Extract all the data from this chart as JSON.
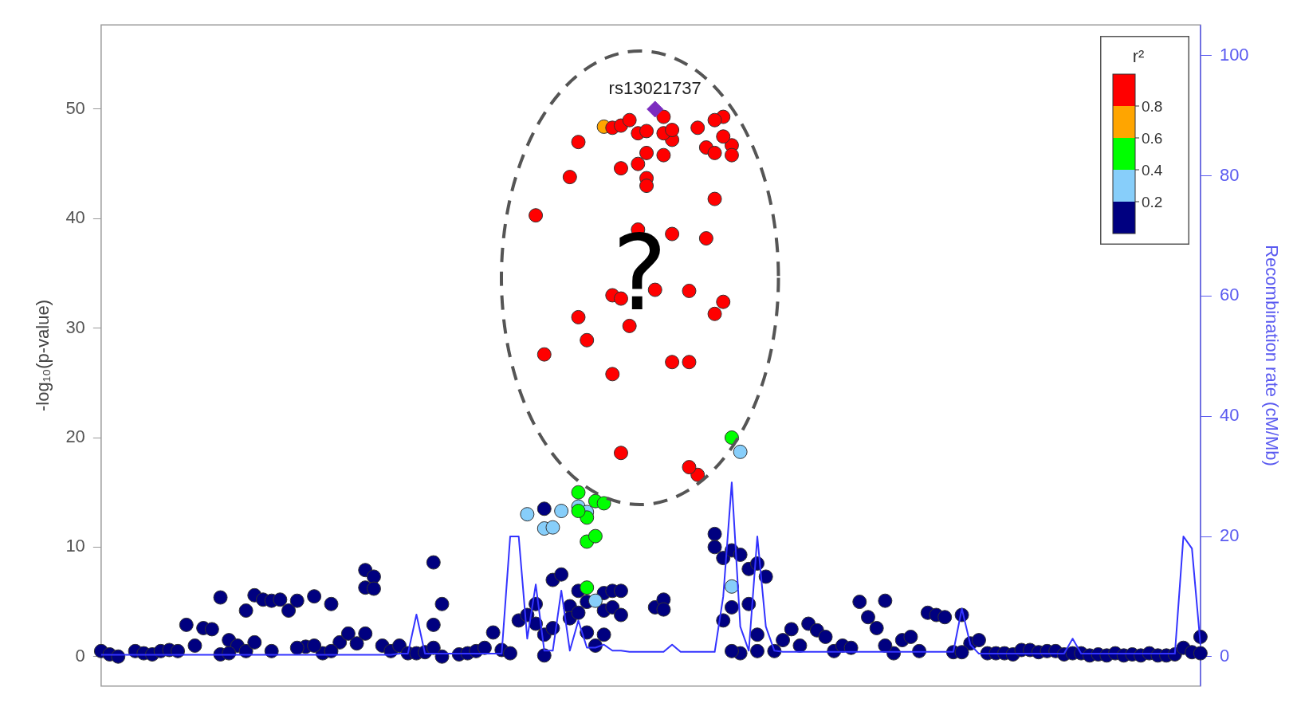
{
  "chart_data": {
    "type": "scatter",
    "ylabel": "-log₁₀(p-value)",
    "y2label": "Recombination rate (cM/Mb)",
    "clabel": "r²",
    "marker": "circle",
    "tick_labels": "y",
    "ylim": [
      -2.7,
      57.7
    ],
    "yticks": [
      0,
      10,
      20,
      30,
      40,
      50
    ],
    "y2lim": [
      -4.9,
      105.1
    ],
    "y2ticks": [
      0,
      20,
      40,
      60,
      80,
      100
    ],
    "annotations": [
      "rs13021737",
      "?",
      "0.2",
      "0.4",
      "0.6",
      "0.8"
    ],
    "categories": [
      null,
      null,
      null,
      null,
      null,
      null,
      null,
      null,
      null,
      null,
      null,
      null,
      null,
      null,
      null,
      null,
      null,
      null,
      null,
      null,
      null,
      null,
      null,
      null,
      null,
      null,
      null,
      null,
      null,
      null,
      null,
      null,
      null,
      null,
      null,
      null,
      null,
      null,
      null,
      null,
      null,
      null,
      null,
      null,
      null,
      null,
      null,
      null,
      null,
      null,
      null,
      null,
      null,
      null,
      null,
      null,
      null,
      null,
      null,
      null,
      null,
      null,
      null,
      null,
      null,
      null,
      null,
      null,
      null,
      null,
      null,
      null,
      null,
      null,
      null,
      null,
      null,
      null,
      null,
      null,
      null,
      null,
      null,
      null,
      null,
      null,
      null,
      null,
      null,
      null,
      null,
      null,
      null,
      null,
      null,
      null,
      null,
      null,
      null,
      null,
      null,
      null,
      null,
      null,
      null,
      null,
      null,
      null,
      null,
      null,
      null,
      null,
      null,
      null,
      null,
      null,
      null,
      null,
      null,
      null,
      null,
      null,
      null,
      null,
      null,
      null,
      null,
      null,
      null,
      null
    ],
    "series": [
      {
        "type": "line",
        "axis": "y2",
        "color": "#3333ff",
        "marker": "none",
        "values": [
          0.3,
          0.3,
          0.3,
          0.3,
          0.3,
          0.3,
          0.3,
          0.3,
          0.3,
          0.3,
          0.3,
          0.3,
          0.3,
          0.3,
          0.3,
          0.3,
          0.3,
          0.3,
          0.3,
          0.3,
          0.3,
          0.3,
          0.3,
          0.3,
          0.3,
          0.3,
          0.3,
          0.3,
          0.3,
          0.3,
          0.3,
          0.3,
          0.3,
          0.3,
          0.3,
          0.5,
          0.5,
          7,
          0.5,
          0.5,
          0.5,
          0.5,
          0.5,
          0.5,
          0.5,
          0.5,
          0.5,
          0.5,
          20,
          20,
          3,
          12,
          1,
          1,
          11,
          1,
          6,
          1.5,
          1.5,
          2,
          1,
          1,
          0.8,
          0.8,
          0.8,
          0.8,
          0.8,
          2,
          0.8,
          0.8,
          0.8,
          0.8,
          0.8,
          10,
          29,
          5,
          1,
          20,
          5,
          1,
          0.8,
          0.8,
          0.8,
          0.8,
          0.8,
          0.8,
          0.8,
          0.8,
          0.8,
          0.8,
          0.8,
          0.8,
          0.8,
          0.8,
          0.8,
          0.8,
          0.8,
          0.8,
          0.8,
          0.8,
          0.8,
          8,
          2,
          0.5,
          0.5,
          0.5,
          0.5,
          0.5,
          0.5,
          0.5,
          0.5,
          0.5,
          0.5,
          0.5,
          3,
          0.5,
          0.5,
          0.5,
          0.5,
          0.5,
          0.5,
          0.5,
          0.5,
          0.5,
          0.5,
          0.5,
          0.5,
          20,
          18,
          2
        ]
      },
      {
        "color": "#000080",
        "values": [
          0.5,
          0.2,
          0,
          null,
          0.5,
          0.3,
          0.2,
          0.5,
          0.6,
          0.5,
          2.9,
          1.0,
          2.6,
          2.5,
          5.4,
          1.5,
          1.0,
          4.2,
          5.6,
          5.2,
          5.1,
          5.2,
          4.2,
          5.1,
          0.9,
          5.5,
          0.3,
          4.8,
          1.3,
          2.1,
          1.2,
          7.9,
          7.3,
          1.0,
          0.5,
          1.0,
          0.3,
          0.3,
          0.4,
          8.6,
          4.8,
          null,
          0.2,
          0.3,
          0.5,
          0.8,
          2.2,
          0.6,
          0.3,
          3.3,
          3.8,
          3.0,
          2.0,
          7.0,
          7.5,
          4.6,
          6.0,
          5.0,
          1.0,
          5.8,
          6.0,
          6.0,
          null,
          null,
          null,
          4.5,
          5.2,
          null,
          null,
          null,
          null,
          null,
          11.2,
          9.0,
          9.7,
          9.3,
          8.0,
          8.5,
          7.3,
          0.5,
          1.5,
          2.5,
          1.0,
          3.0,
          2.4,
          1.8,
          0.5,
          1.0,
          0.8,
          5.0,
          3.6,
          2.6,
          5.1,
          0.3,
          1.5,
          1.8,
          0.5,
          4.0,
          3.8,
          3.6,
          0.4,
          3.8,
          1.2,
          1.5,
          0.3,
          0.3,
          0.3,
          0.2,
          0.6,
          0.6,
          0.4,
          0.5,
          0.5,
          0.2,
          0.3,
          0.3,
          0.1,
          0.2,
          0.1,
          0.3,
          0.1,
          0.2,
          0.1,
          0.3,
          0.1,
          0.1,
          0.2,
          0.8,
          0.4,
          1.8
        ]
      },
      {
        "color": "#000080",
        "values": [
          null,
          null,
          null,
          null,
          null,
          null,
          null,
          null,
          null,
          null,
          null,
          null,
          null,
          null,
          0.2,
          0.3,
          null,
          0.5,
          1.3,
          null,
          0.5,
          null,
          null,
          0.8,
          null,
          1.0,
          null,
          0.5,
          null,
          null,
          null,
          6.3,
          6.2,
          null,
          null,
          null,
          null,
          null,
          null,
          2.9,
          0,
          null,
          null,
          null,
          null,
          null,
          null,
          null,
          null,
          null,
          null,
          4.8,
          0.1,
          2.6,
          null,
          3.5,
          4.0,
          2.2,
          null,
          4.2,
          4.5,
          3.8,
          null,
          null,
          null,
          null,
          4.3,
          null,
          null,
          null,
          null,
          null,
          10.0,
          3.3,
          4.5,
          0.3,
          4.8,
          0.5,
          null,
          null,
          null,
          null,
          null,
          null,
          null,
          null,
          null,
          null,
          null,
          null,
          null,
          null,
          1.0,
          null,
          null,
          null,
          null,
          null,
          null,
          null,
          null,
          0.4,
          null,
          null,
          null,
          null,
          null,
          null,
          null,
          null,
          null,
          null,
          null,
          null,
          null,
          null,
          null,
          null,
          null,
          null,
          null,
          null,
          null,
          null,
          null,
          null,
          null,
          null,
          null,
          0.3
        ]
      },
      {
        "color": "#000080",
        "values": [
          null,
          null,
          null,
          null,
          null,
          null,
          null,
          null,
          null,
          null,
          null,
          null,
          null,
          null,
          null,
          null,
          null,
          null,
          null,
          null,
          null,
          null,
          null,
          null,
          null,
          null,
          null,
          null,
          null,
          null,
          null,
          2.1,
          null,
          null,
          null,
          null,
          null,
          null,
          null,
          0.8,
          null,
          null,
          null,
          null,
          null,
          null,
          null,
          null,
          null,
          null,
          null,
          null,
          13.5,
          null,
          null,
          null,
          null,
          null,
          null,
          2.0,
          null,
          null,
          null,
          null,
          null,
          null,
          null,
          null,
          null,
          null,
          null,
          null,
          null,
          null,
          0.5,
          null,
          null,
          2.0,
          null,
          null,
          null,
          null,
          null,
          null,
          null,
          null,
          null,
          null,
          null,
          null,
          null,
          null,
          null,
          null,
          null,
          null,
          null,
          null,
          null,
          null,
          null,
          null,
          null,
          null,
          null,
          null,
          null,
          null,
          null,
          null,
          null,
          null,
          null,
          null,
          null,
          null,
          null,
          null,
          null,
          null,
          null,
          null,
          null,
          null,
          null,
          null,
          null,
          null,
          null,
          null
        ]
      },
      {
        "color": "#87cefa",
        "values": [
          null,
          null,
          null,
          null,
          null,
          null,
          null,
          null,
          null,
          null,
          null,
          null,
          null,
          null,
          null,
          null,
          null,
          null,
          null,
          null,
          null,
          null,
          null,
          null,
          null,
          null,
          null,
          null,
          null,
          null,
          null,
          null,
          null,
          null,
          null,
          null,
          null,
          null,
          null,
          null,
          null,
          null,
          null,
          null,
          null,
          null,
          null,
          null,
          null,
          null,
          13.0,
          null,
          11.7,
          11.8,
          13.3,
          null,
          13.7,
          13.2,
          5.1,
          null,
          null,
          null,
          null,
          null,
          null,
          null,
          null,
          null,
          null,
          null,
          null,
          null,
          null,
          null,
          6.4,
          18.7,
          null,
          null,
          null,
          null,
          null,
          null,
          null,
          null,
          null,
          null,
          null,
          null,
          null,
          null,
          null,
          null,
          null,
          null,
          null,
          null,
          null,
          null,
          null,
          null,
          null,
          null,
          null,
          null,
          null,
          null,
          null,
          null,
          null,
          null,
          null,
          null,
          null,
          null,
          null,
          null,
          null,
          null,
          null,
          null,
          null,
          null,
          null,
          null,
          null,
          null,
          null,
          null,
          null,
          null
        ]
      },
      {
        "color": "#00ff00",
        "values": [
          null,
          null,
          null,
          null,
          null,
          null,
          null,
          null,
          null,
          null,
          null,
          null,
          null,
          null,
          null,
          null,
          null,
          null,
          null,
          null,
          null,
          null,
          null,
          null,
          null,
          null,
          null,
          null,
          null,
          null,
          null,
          null,
          null,
          null,
          null,
          null,
          null,
          null,
          null,
          null,
          null,
          null,
          null,
          null,
          null,
          null,
          null,
          null,
          null,
          null,
          null,
          null,
          null,
          null,
          null,
          null,
          15.0,
          12.7,
          14.2,
          14.0,
          null,
          null,
          null,
          null,
          null,
          null,
          null,
          null,
          null,
          null,
          null,
          null,
          null,
          null,
          20.0,
          null,
          null,
          null,
          null,
          null,
          null,
          null,
          null,
          null,
          null,
          null,
          null,
          null,
          null,
          null,
          null,
          null,
          null,
          null,
          null,
          null,
          null,
          null,
          null,
          null,
          null,
          null,
          null,
          null,
          null,
          null,
          null,
          null,
          null,
          null,
          null,
          null,
          null,
          null,
          null,
          null,
          null,
          null,
          null,
          null,
          null,
          null,
          null,
          null,
          null,
          null,
          null,
          null,
          null,
          null
        ]
      },
      {
        "color": "#00ff00",
        "values": [
          null,
          null,
          null,
          null,
          null,
          null,
          null,
          null,
          null,
          null,
          null,
          null,
          null,
          null,
          null,
          null,
          null,
          null,
          null,
          null,
          null,
          null,
          null,
          null,
          null,
          null,
          null,
          null,
          null,
          null,
          null,
          null,
          null,
          null,
          null,
          null,
          null,
          null,
          null,
          null,
          null,
          null,
          null,
          null,
          null,
          null,
          null,
          null,
          null,
          null,
          null,
          null,
          null,
          null,
          null,
          null,
          13.3,
          10.5,
          11.0,
          null,
          null,
          null,
          null,
          null,
          null,
          null,
          null,
          null,
          null,
          null,
          null,
          null,
          null,
          null,
          null,
          null,
          null,
          null,
          null,
          null,
          null,
          null,
          null,
          null,
          null,
          null,
          null,
          null,
          null,
          null,
          null,
          null,
          null,
          null,
          null,
          null,
          null,
          null,
          null,
          null,
          null,
          null,
          null,
          null,
          null,
          null,
          null,
          null,
          null,
          null,
          null,
          null,
          null,
          null,
          null,
          null,
          null,
          null,
          null,
          null,
          null,
          null,
          null,
          null,
          null,
          null,
          null,
          null,
          null,
          null
        ]
      },
      {
        "color": "#00ff00",
        "values": [
          null,
          null,
          null,
          null,
          null,
          null,
          null,
          null,
          null,
          null,
          null,
          null,
          null,
          null,
          null,
          null,
          null,
          null,
          null,
          null,
          null,
          null,
          null,
          null,
          null,
          null,
          null,
          null,
          null,
          null,
          null,
          null,
          null,
          null,
          null,
          null,
          null,
          null,
          null,
          null,
          null,
          null,
          null,
          null,
          null,
          null,
          null,
          null,
          null,
          null,
          null,
          null,
          null,
          null,
          null,
          null,
          null,
          6.3,
          null,
          null,
          null,
          null,
          null,
          null,
          null,
          null,
          null,
          null,
          null,
          null,
          null,
          null,
          null,
          null,
          null,
          null,
          null,
          null,
          null,
          null,
          null,
          null,
          null,
          null,
          null,
          null,
          null,
          null,
          null,
          null,
          null,
          null,
          null,
          null,
          null,
          null,
          null,
          null,
          null,
          null,
          null,
          null,
          null,
          null,
          null,
          null,
          null,
          null,
          null,
          null,
          null,
          null,
          null,
          null,
          null,
          null,
          null,
          null,
          null,
          null,
          null,
          null,
          null,
          null,
          null,
          null,
          null,
          null,
          null,
          null
        ]
      },
      {
        "color": "#ffa500",
        "values": [
          null,
          null,
          null,
          null,
          null,
          null,
          null,
          null,
          null,
          null,
          null,
          null,
          null,
          null,
          null,
          null,
          null,
          null,
          null,
          null,
          null,
          null,
          null,
          null,
          null,
          null,
          null,
          null,
          null,
          null,
          null,
          null,
          null,
          null,
          null,
          null,
          null,
          null,
          null,
          null,
          null,
          null,
          null,
          null,
          null,
          null,
          null,
          null,
          null,
          null,
          null,
          null,
          null,
          null,
          null,
          null,
          null,
          null,
          null,
          48.4,
          null,
          null,
          null,
          null,
          null,
          null,
          null,
          null,
          null,
          null,
          null,
          null,
          null,
          null,
          null,
          null,
          null,
          null,
          null,
          null,
          null,
          null,
          null,
          null,
          null,
          null,
          null,
          null,
          null,
          null,
          null,
          null,
          null,
          null,
          null,
          null,
          null,
          null,
          null,
          null,
          null,
          null,
          null,
          null,
          null,
          null,
          null,
          null,
          null,
          null,
          null,
          null,
          null,
          null,
          null,
          null,
          null,
          null,
          null,
          null,
          null,
          null,
          null,
          null,
          null,
          null,
          null,
          null,
          null,
          null
        ]
      },
      {
        "color": "#ff0000",
        "values": [
          null,
          null,
          null,
          null,
          null,
          null,
          null,
          null,
          null,
          null,
          null,
          null,
          null,
          null,
          null,
          null,
          null,
          null,
          null,
          null,
          null,
          null,
          null,
          null,
          null,
          null,
          null,
          null,
          null,
          null,
          null,
          null,
          null,
          null,
          null,
          null,
          null,
          null,
          null,
          null,
          null,
          null,
          null,
          null,
          null,
          null,
          null,
          null,
          null,
          null,
          null,
          40.3,
          27.6,
          null,
          null,
          43.8,
          47.0,
          28.9,
          null,
          null,
          48.3,
          48.5,
          49.0,
          47.8,
          46.0,
          33.5,
          49.3,
          47.2,
          null,
          33.4,
          48.3,
          38.2,
          41.8,
          49.3,
          46.7,
          null,
          null,
          null,
          null,
          null,
          null,
          null,
          null,
          null,
          null,
          null,
          null,
          null,
          null,
          null,
          null,
          null,
          null,
          null,
          null,
          null,
          null,
          null,
          null,
          null,
          null,
          null,
          null,
          null,
          null,
          null,
          null,
          null,
          null,
          null,
          null,
          null,
          null,
          null,
          null,
          null,
          null,
          null,
          null,
          null,
          null,
          null,
          null,
          null,
          null,
          null,
          null,
          null,
          null,
          null
        ]
      },
      {
        "color": "#ff0000",
        "values": [
          null,
          null,
          null,
          null,
          null,
          null,
          null,
          null,
          null,
          null,
          null,
          null,
          null,
          null,
          null,
          null,
          null,
          null,
          null,
          null,
          null,
          null,
          null,
          null,
          null,
          null,
          null,
          null,
          null,
          null,
          null,
          null,
          null,
          null,
          null,
          null,
          null,
          null,
          null,
          null,
          null,
          null,
          null,
          null,
          null,
          null,
          null,
          null,
          null,
          null,
          null,
          null,
          null,
          null,
          null,
          null,
          31.0,
          null,
          null,
          null,
          33.0,
          44.6,
          30.2,
          45.0,
          48.0,
          null,
          47.8,
          48.1,
          null,
          26.9,
          16.6,
          46.5,
          49.0,
          47.5,
          45.8,
          null,
          null,
          null,
          null,
          null,
          null,
          null,
          null,
          null,
          null,
          null,
          null,
          null,
          null,
          null,
          null,
          null,
          null,
          null,
          null,
          null,
          null,
          null,
          null,
          null,
          null,
          null,
          null,
          null,
          null,
          null,
          null,
          null,
          null,
          null,
          null,
          null,
          null,
          null,
          null,
          null,
          null,
          null,
          null,
          null,
          null,
          null,
          null,
          null,
          null,
          null,
          null,
          null,
          null,
          null
        ]
      },
      {
        "color": "#ff0000",
        "values": [
          null,
          null,
          null,
          null,
          null,
          null,
          null,
          null,
          null,
          null,
          null,
          null,
          null,
          null,
          null,
          null,
          null,
          null,
          null,
          null,
          null,
          null,
          null,
          null,
          null,
          null,
          null,
          null,
          null,
          null,
          null,
          null,
          null,
          null,
          null,
          null,
          null,
          null,
          null,
          null,
          null,
          null,
          null,
          null,
          null,
          null,
          null,
          null,
          null,
          null,
          null,
          null,
          null,
          null,
          null,
          null,
          null,
          null,
          null,
          null,
          25.8,
          32.7,
          null,
          null,
          43.7,
          null,
          45.8,
          38.6,
          null,
          17.3,
          null,
          null,
          46.0,
          32.4,
          null,
          null,
          null,
          null,
          null,
          null,
          null,
          null,
          null,
          null,
          null,
          null,
          null,
          null,
          null,
          null,
          null,
          null,
          null,
          null,
          null,
          null,
          null,
          null,
          null,
          null,
          null,
          null,
          null,
          null,
          null,
          null,
          null,
          null,
          null,
          null,
          null,
          null,
          null,
          null,
          null,
          null,
          null,
          null,
          null,
          null,
          null,
          null,
          null,
          null,
          null,
          null,
          null,
          null,
          null,
          null
        ]
      },
      {
        "color": "#ff0000",
        "values": [
          null,
          null,
          null,
          null,
          null,
          null,
          null,
          null,
          null,
          null,
          null,
          null,
          null,
          null,
          null,
          null,
          null,
          null,
          null,
          null,
          null,
          null,
          null,
          null,
          null,
          null,
          null,
          null,
          null,
          null,
          null,
          null,
          null,
          null,
          null,
          null,
          null,
          null,
          null,
          null,
          null,
          null,
          null,
          null,
          null,
          null,
          null,
          null,
          null,
          null,
          null,
          null,
          null,
          null,
          null,
          null,
          null,
          null,
          null,
          null,
          null,
          18.6,
          null,
          39.0,
          43.0,
          null,
          null,
          26.9,
          null,
          null,
          null,
          null,
          31.3,
          null,
          null,
          null,
          null,
          null,
          null,
          null,
          null,
          null,
          null,
          null,
          null,
          null,
          null,
          null,
          null,
          null,
          null,
          null,
          null,
          null,
          null,
          null,
          null,
          null,
          null,
          null,
          null,
          null,
          null,
          null,
          null,
          null,
          null,
          null,
          null,
          null,
          null,
          null,
          null,
          null,
          null,
          null,
          null,
          null,
          null,
          null,
          null,
          null,
          null,
          null,
          null,
          null,
          null,
          null,
          null,
          null
        ]
      },
      {
        "color": "#7b2cbf",
        "marker": "diamond",
        "values": [
          null,
          null,
          null,
          null,
          null,
          null,
          null,
          null,
          null,
          null,
          null,
          null,
          null,
          null,
          null,
          null,
          null,
          null,
          null,
          null,
          null,
          null,
          null,
          null,
          null,
          null,
          null,
          null,
          null,
          null,
          null,
          null,
          null,
          null,
          null,
          null,
          null,
          null,
          null,
          null,
          null,
          null,
          null,
          null,
          null,
          null,
          null,
          null,
          null,
          null,
          null,
          null,
          null,
          null,
          null,
          null,
          null,
          null,
          null,
          null,
          null,
          null,
          null,
          null,
          null,
          50,
          null,
          null,
          null,
          null,
          null,
          null,
          null,
          null,
          null,
          null,
          null,
          null,
          null,
          null,
          null,
          null,
          null,
          null,
          null,
          null,
          null,
          null,
          null,
          null,
          null,
          null,
          null,
          null,
          null,
          null,
          null,
          null,
          null,
          null,
          null,
          null,
          null,
          null,
          null,
          null,
          null,
          null,
          null,
          null,
          null,
          null,
          null,
          null,
          null,
          null,
          null,
          null,
          null,
          null,
          null,
          null,
          null,
          null,
          null,
          null,
          null,
          null,
          null,
          null
        ]
      }
    ]
  }
}
